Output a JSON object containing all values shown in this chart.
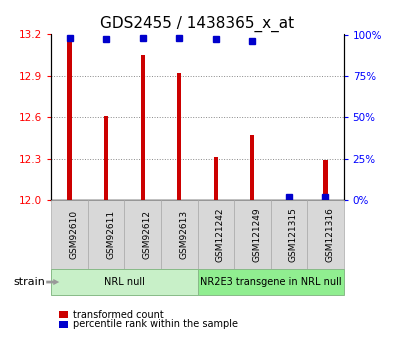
{
  "title": "GDS2455 / 1438365_x_at",
  "samples": [
    "GSM92610",
    "GSM92611",
    "GSM92612",
    "GSM92613",
    "GSM121242",
    "GSM121249",
    "GSM121315",
    "GSM121316"
  ],
  "transformed_counts": [
    13.19,
    12.61,
    13.05,
    12.92,
    12.31,
    12.47,
    12.02,
    12.29
  ],
  "percentile_values": [
    98,
    97,
    98,
    98,
    97,
    96,
    2,
    2
  ],
  "groups": [
    {
      "label": "NRL null",
      "start": 0,
      "end": 4,
      "color": "#c8f0c8"
    },
    {
      "label": "NR2E3 transgene in NRL null",
      "start": 4,
      "end": 8,
      "color": "#90ee90"
    }
  ],
  "ylim": [
    12.0,
    13.2
  ],
  "yticks": [
    12.0,
    12.3,
    12.6,
    12.9,
    13.2
  ],
  "right_yticks": [
    0,
    25,
    50,
    75,
    100
  ],
  "right_ylim": [
    0,
    100
  ],
  "bar_color": "#cc0000",
  "dot_color": "#0000cc",
  "background_color": "#ffffff",
  "grid_color": "#888888",
  "legend_items": [
    {
      "label": "transformed count",
      "color": "#cc0000"
    },
    {
      "label": "percentile rank within the sample",
      "color": "#0000cc"
    }
  ],
  "strain_label": "strain",
  "title_fontsize": 11,
  "tick_fontsize": 7.5,
  "label_fontsize": 8
}
